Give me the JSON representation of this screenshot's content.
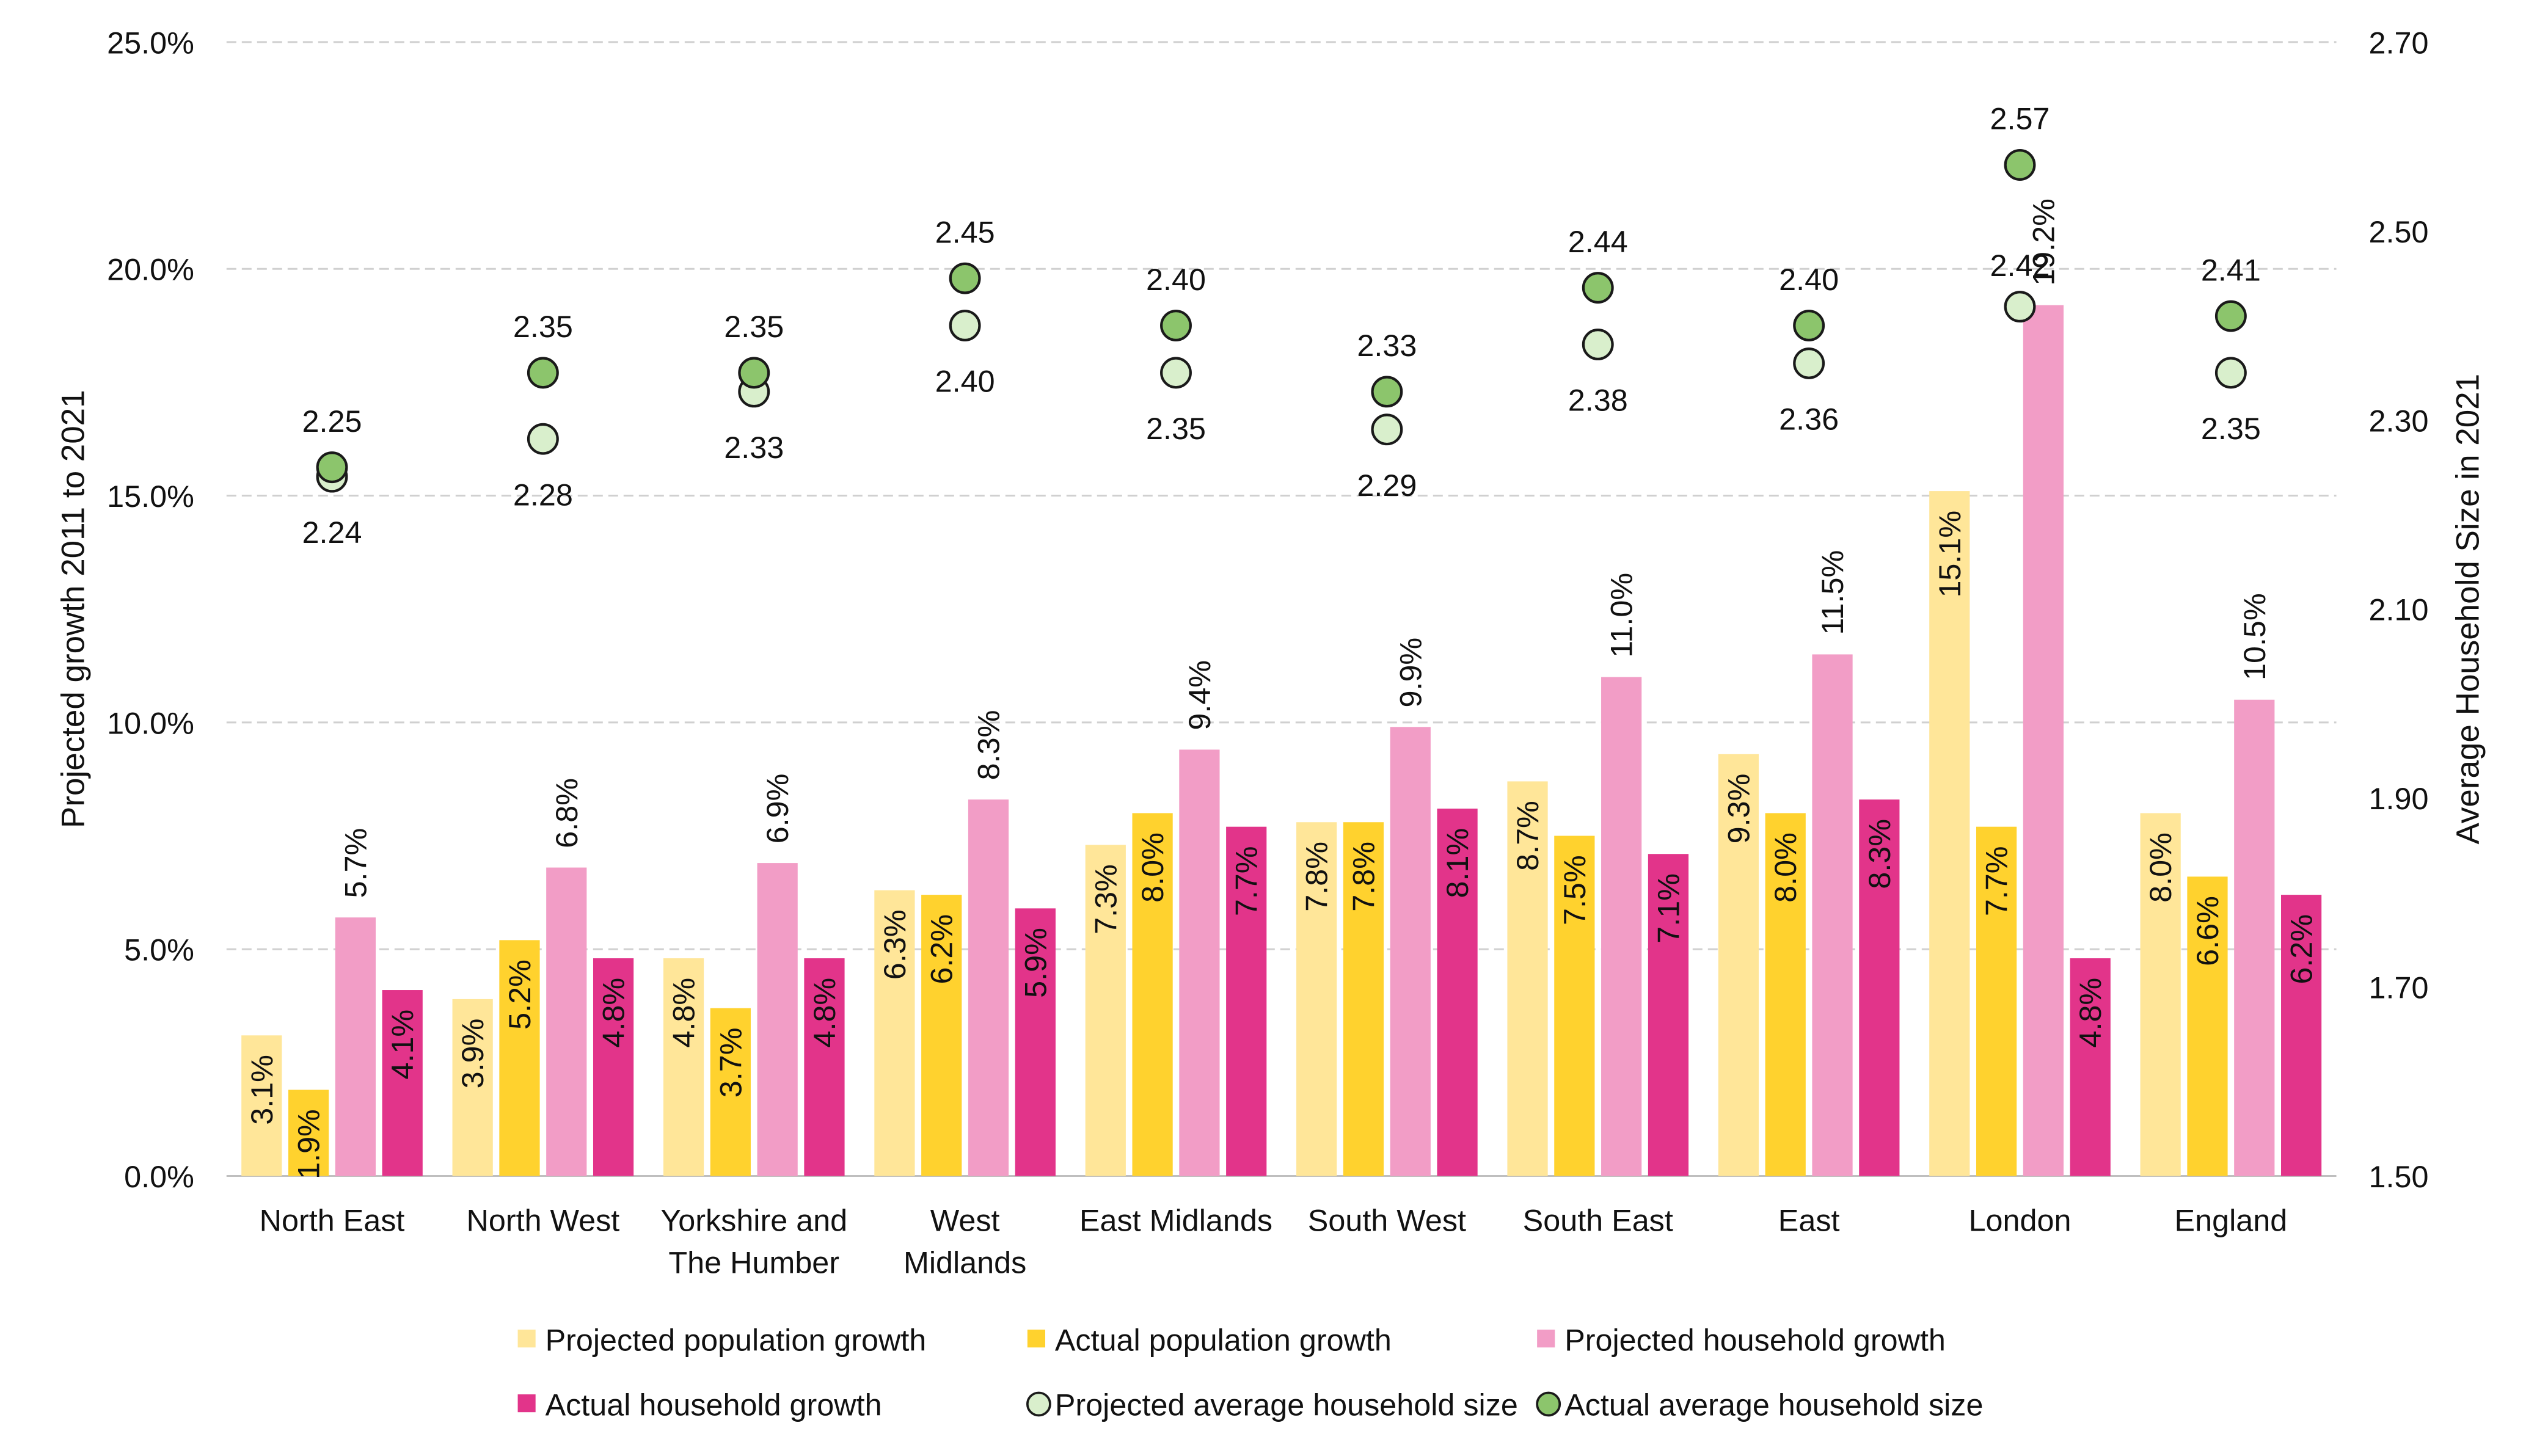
{
  "chart_data": {
    "type": "bar",
    "title": "",
    "categories": [
      "North East",
      "North West",
      "Yorkshire and The Humber",
      "West Midlands",
      "East Midlands",
      "South West",
      "South East",
      "East",
      "London",
      "England"
    ],
    "category_lines": [
      [
        "North East"
      ],
      [
        "North West"
      ],
      [
        "Yorkshire and",
        "The Humber"
      ],
      [
        "West",
        "Midlands"
      ],
      [
        "East Midlands"
      ],
      [
        "South West"
      ],
      [
        "South East"
      ],
      [
        "East"
      ],
      [
        "London"
      ],
      [
        "England"
      ]
    ],
    "ylabel": "Projected growth 2011 to 2021",
    "y2label": "Average Household Size in 2021",
    "ylim": [
      0,
      25
    ],
    "y2lim": [
      1.5,
      2.7
    ],
    "yticks": [
      "0.0%",
      "5.0%",
      "10.0%",
      "15.0%",
      "20.0%",
      "25.0%"
    ],
    "y2ticks": [
      "1.50",
      "1.70",
      "1.90",
      "2.10",
      "2.30",
      "2.50",
      "2.70"
    ],
    "grid": true,
    "legend_position": "bottom",
    "bar_series": [
      {
        "name": "Projected population growth",
        "color": "#FFE699",
        "values": [
          3.1,
          3.9,
          4.8,
          6.3,
          7.3,
          7.8,
          8.7,
          9.3,
          15.1,
          8.0
        ],
        "labels": [
          "3.1%",
          "3.9%",
          "4.8%",
          "6.3%",
          "7.3%",
          "7.8%",
          "8.7%",
          "9.3%",
          "15.1%",
          "8.0%"
        ]
      },
      {
        "name": "Actual population growth",
        "color": "#FFD22E",
        "values": [
          1.9,
          5.2,
          3.7,
          6.2,
          8.0,
          7.8,
          7.5,
          8.0,
          7.7,
          6.6
        ],
        "labels": [
          "1.9%",
          "5.2%",
          "3.7%",
          "6.2%",
          "8.0%",
          "7.8%",
          "7.5%",
          "8.0%",
          "7.7%",
          "6.6%"
        ]
      },
      {
        "name": "Projected household growth",
        "color": "#F29DC6",
        "values": [
          5.7,
          6.8,
          6.9,
          8.3,
          9.4,
          9.9,
          11.0,
          11.5,
          19.2,
          10.5
        ],
        "labels": [
          "5.7%",
          "6.8%",
          "6.9%",
          "8.3%",
          "9.4%",
          "9.9%",
          "11.0%",
          "11.5%",
          "19.2%",
          "10.5%"
        ]
      },
      {
        "name": "Actual household growth",
        "color": "#E2348A",
        "values": [
          4.1,
          4.8,
          4.8,
          5.9,
          7.7,
          8.1,
          7.1,
          8.3,
          4.8,
          6.2
        ],
        "labels": [
          "4.1%",
          "4.8%",
          "4.8%",
          "5.9%",
          "7.7%",
          "8.1%",
          "7.1%",
          "8.3%",
          "4.8%",
          "6.2%"
        ]
      }
    ],
    "point_series": [
      {
        "name": "Projected average household size",
        "color": "#D9EFCC",
        "values": [
          2.24,
          2.28,
          2.33,
          2.4,
          2.35,
          2.29,
          2.38,
          2.36,
          2.42,
          2.35
        ],
        "labels": [
          "2.24",
          "2.28",
          "2.33",
          "2.40",
          "2.35",
          "2.29",
          "2.38",
          "2.36",
          "2.42",
          "2.35"
        ]
      },
      {
        "name": "Actual average household size",
        "color": "#8CC56C",
        "values": [
          2.25,
          2.35,
          2.35,
          2.45,
          2.4,
          2.33,
          2.44,
          2.4,
          2.57,
          2.41
        ],
        "labels": [
          "2.25",
          "2.35",
          "2.35",
          "2.45",
          "2.40",
          "2.33",
          "2.44",
          "2.40",
          "2.57",
          "2.41"
        ]
      }
    ]
  }
}
